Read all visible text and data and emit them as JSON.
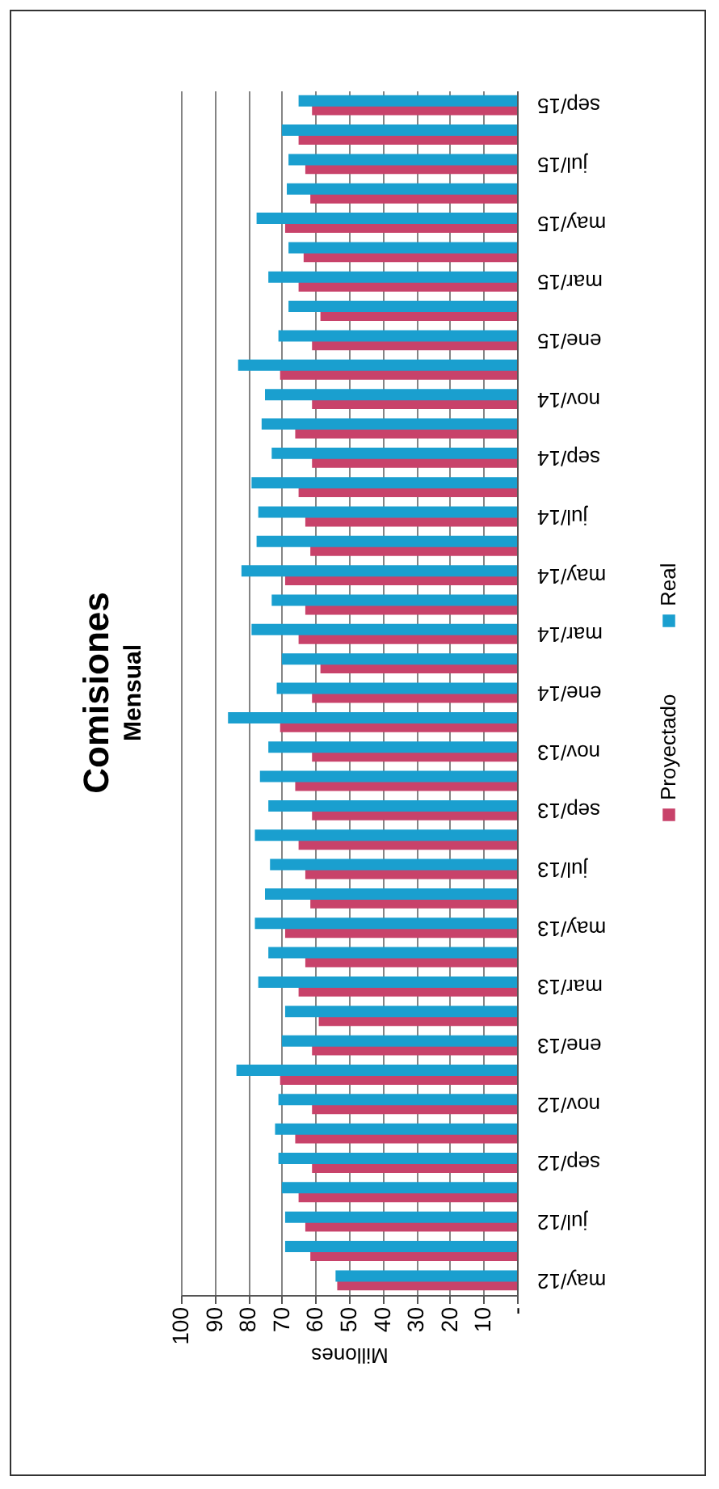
{
  "chart_data": {
    "type": "bar",
    "orientation": "horizontal",
    "title": "Comisiones",
    "subtitle": "Mensual",
    "xlabel": "Millones",
    "categories": [
      "sep/15",
      null,
      "jul/15",
      null,
      "may/15",
      null,
      "mar/15",
      null,
      "ene/15",
      null,
      "nov/14",
      null,
      "sep/14",
      null,
      "jul/14",
      null,
      "may/14",
      null,
      "mar/14",
      null,
      "ene/14",
      null,
      "nov/13",
      null,
      "sep/13",
      null,
      "jul/13",
      null,
      "may/13",
      null,
      "mar/13",
      null,
      "ene/13",
      null,
      "nov/12",
      null,
      "sep/12",
      null,
      "jul/12",
      null,
      "may/12"
    ],
    "series": [
      {
        "name": "Proyectado",
        "color": "#c8426a",
        "values": [
          61,
          65,
          63,
          61.5,
          69,
          63.5,
          65,
          58.5,
          61,
          70.5,
          61,
          66,
          61,
          65,
          63,
          61.5,
          69,
          63,
          65,
          58.5,
          61,
          70.5,
          61,
          66,
          61,
          65,
          63,
          61.5,
          69,
          63,
          65,
          59,
          61,
          70.5,
          61,
          66,
          61,
          65,
          63,
          61.5,
          53.5
        ]
      },
      {
        "name": "Real",
        "color": "#1a9fcf",
        "values": [
          65,
          70,
          68,
          68.5,
          77.5,
          68,
          74,
          68,
          71,
          83,
          75,
          76,
          73,
          79,
          77,
          77.5,
          82,
          73,
          79,
          70,
          71.5,
          86,
          74,
          76.5,
          74,
          78,
          73.5,
          75,
          78,
          74,
          77,
          69,
          70,
          83.5,
          71,
          72,
          71,
          70,
          69,
          69,
          54
        ]
      }
    ],
    "xlim": [
      100,
      0
    ],
    "xticks": [
      100,
      90,
      80,
      70,
      60,
      50,
      40,
      30,
      20,
      10,
      {
        "value": 0,
        "label": "-"
      }
    ],
    "grid": "x",
    "legend": "right"
  }
}
